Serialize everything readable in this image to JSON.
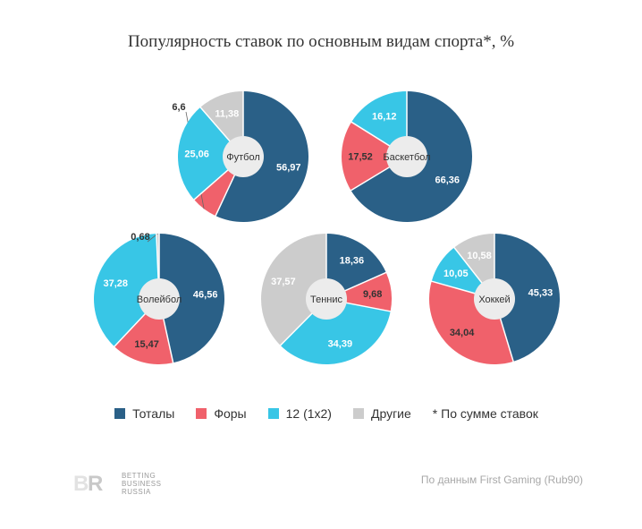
{
  "title": "Популярность ставок по основным видам спорта*, %",
  "colors": {
    "totals": "#2a6087",
    "fory": "#f0616b",
    "onex2": "#38c6e6",
    "other": "#cccccc",
    "hole": "#ececec",
    "title": "#333333"
  },
  "legend": {
    "items": [
      {
        "label": "Тоталы",
        "color": "#2a6087"
      },
      {
        "label": "Форы",
        "color": "#f0616b"
      },
      {
        "label": "12 (1х2)",
        "color": "#38c6e6"
      },
      {
        "label": "Другие",
        "color": "#cccccc"
      }
    ],
    "note": "* По сумме ставок"
  },
  "logo": {
    "mark": "BR",
    "line1": "BETTING",
    "line2": "BUSINESS",
    "line3": "RUSSIA"
  },
  "source": "По данным First Gaming (Rub90)",
  "chart_data": [
    {
      "type": "pie",
      "title": "Футбол",
      "categories": [
        "Тоталы",
        "Форы",
        "12 (1х2)",
        "Другие"
      ],
      "values": [
        56.97,
        6.6,
        25.06,
        11.38
      ],
      "value_labels": [
        "56,97",
        "6,6",
        "25,06",
        "11,38"
      ]
    },
    {
      "type": "pie",
      "title": "Баскетбол",
      "categories": [
        "Тоталы",
        "Форы",
        "12 (1х2)",
        "Другие"
      ],
      "values": [
        66.36,
        17.52,
        16.12,
        0
      ],
      "value_labels": [
        "66,36",
        "17,52",
        "16,12",
        ""
      ]
    },
    {
      "type": "pie",
      "title": "Волейбол",
      "categories": [
        "Тоталы",
        "Форы",
        "12 (1х2)",
        "Другие"
      ],
      "values": [
        46.56,
        15.47,
        37.28,
        0.68
      ],
      "value_labels": [
        "46,56",
        "15,47",
        "37,28",
        "0,68"
      ]
    },
    {
      "type": "pie",
      "title": "Теннис",
      "categories": [
        "Тоталы",
        "Форы",
        "12 (1х2)",
        "Другие"
      ],
      "values": [
        18.36,
        9.68,
        34.39,
        37.57
      ],
      "value_labels": [
        "18,36",
        "9,68",
        "34,39",
        "37,57"
      ]
    },
    {
      "type": "pie",
      "title": "Хоккей",
      "categories": [
        "Тоталы",
        "Форы",
        "12 (1х2)",
        "Другие"
      ],
      "values": [
        45.33,
        34.04,
        10.05,
        10.58
      ],
      "value_labels": [
        "45,33",
        "34,04",
        "10,05",
        "10,58"
      ]
    }
  ]
}
